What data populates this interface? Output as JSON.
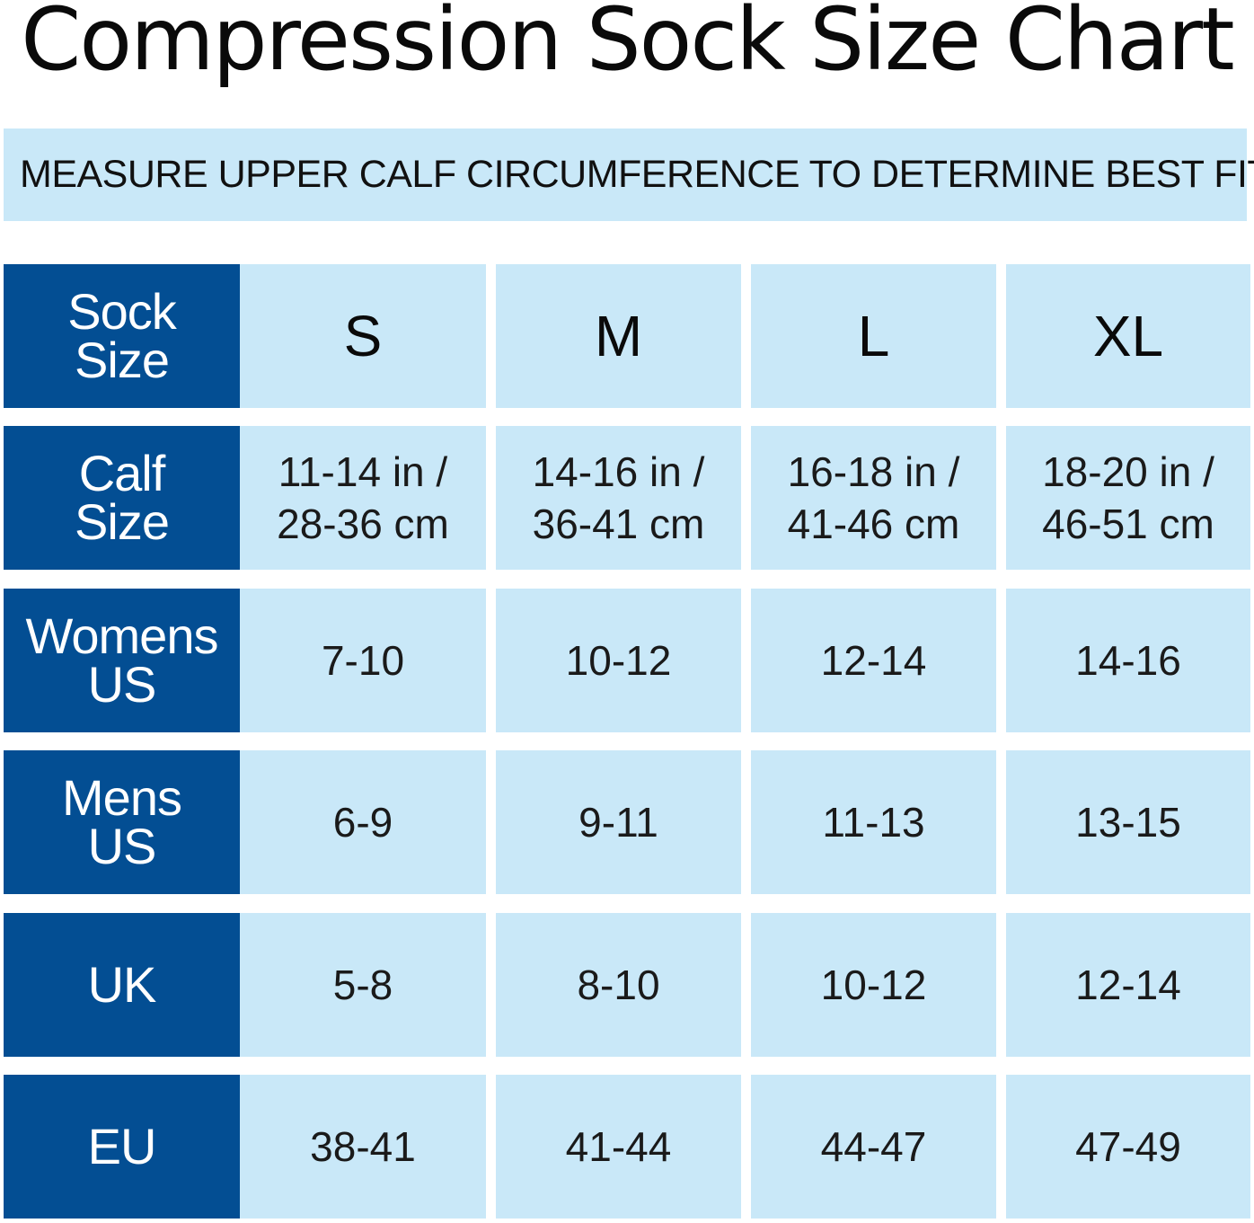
{
  "title": "Compression Sock Size Chart",
  "banner": "MEASURE UPPER CALF CIRCUMFERENCE TO DETERMINE BEST FIT",
  "colors": {
    "header_bg": "#034e93",
    "cell_bg": "#c9e8f8",
    "header_text": "#ffffff",
    "cell_text": "#1a1a1a"
  },
  "rows": [
    {
      "label": [
        "Sock",
        "Size"
      ],
      "values": [
        [
          "S"
        ],
        [
          "M"
        ],
        [
          "L"
        ],
        [
          "XL"
        ]
      ]
    },
    {
      "label": [
        "Calf",
        "Size"
      ],
      "values": [
        [
          "11-14 in /",
          "28-36 cm"
        ],
        [
          "14-16 in /",
          "36-41 cm"
        ],
        [
          "16-18 in /",
          "41-46 cm"
        ],
        [
          "18-20 in /",
          "46-51 cm"
        ]
      ]
    },
    {
      "label": [
        "Womens",
        "US"
      ],
      "values": [
        [
          "7-10"
        ],
        [
          "10-12"
        ],
        [
          "12-14"
        ],
        [
          "14-16"
        ]
      ]
    },
    {
      "label": [
        "Mens",
        "US"
      ],
      "values": [
        [
          "6-9"
        ],
        [
          "9-11"
        ],
        [
          "11-13"
        ],
        [
          "13-15"
        ]
      ]
    },
    {
      "label": [
        "UK"
      ],
      "values": [
        [
          "5-8"
        ],
        [
          "8-10"
        ],
        [
          "10-12"
        ],
        [
          "12-14"
        ]
      ]
    },
    {
      "label": [
        "EU"
      ],
      "values": [
        [
          "38-41"
        ],
        [
          "41-44"
        ],
        [
          "44-47"
        ],
        [
          "47-49"
        ]
      ]
    }
  ]
}
